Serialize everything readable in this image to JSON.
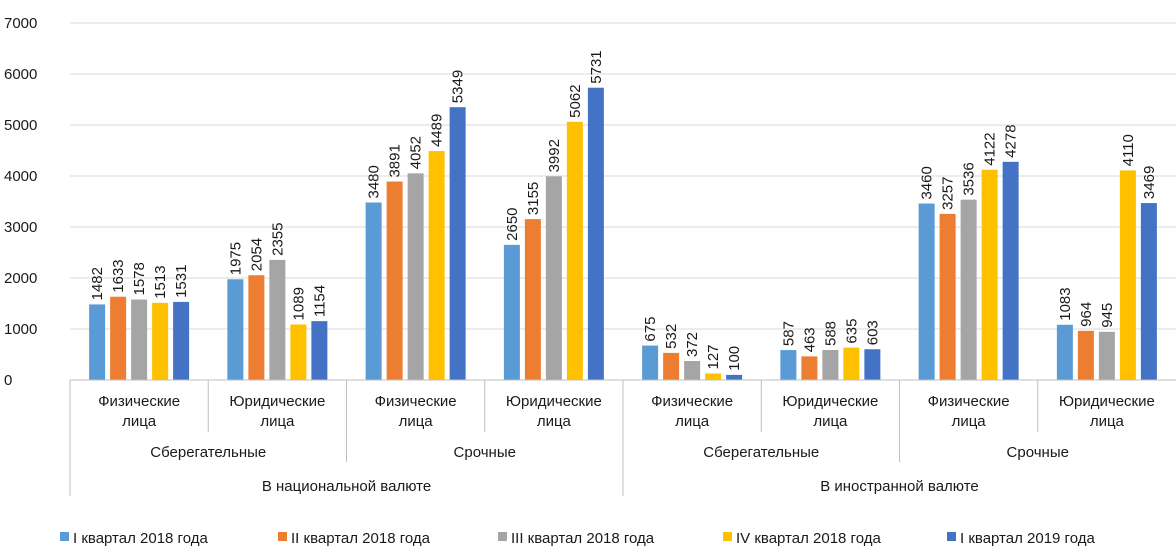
{
  "chart_data": {
    "type": "bar",
    "title": "",
    "xlabel": "",
    "ylabel": "",
    "ylim": [
      0,
      7000
    ],
    "yticks": [
      0,
      1000,
      2000,
      3000,
      4000,
      5000,
      6000,
      7000
    ],
    "grid": true,
    "legend_position": "bottom",
    "categories": [
      "Физические лица",
      "Юридические лица",
      "Физические лица",
      "Юридические лица",
      "Физические лица",
      "Юридические лица",
      "Физические лица",
      "Юридические лица"
    ],
    "category_lines": [
      [
        "Физические",
        "лица"
      ],
      [
        "Юридические",
        "лица"
      ],
      [
        "Физические",
        "лица"
      ],
      [
        "Юридические",
        "лица"
      ],
      [
        "Физические",
        "лица"
      ],
      [
        "Юридические",
        "лица"
      ],
      [
        "Физические",
        "лица"
      ],
      [
        "Юридические",
        "лица"
      ]
    ],
    "level2": [
      "Сберегательные",
      "Срочные",
      "Сберегательные",
      "Срочные"
    ],
    "level3": [
      "В национальной валюте",
      "В иностранной валюте"
    ],
    "series": [
      {
        "name": "I квартал 2018 года",
        "color": "#5b9bd5",
        "values": [
          1482,
          1975,
          3480,
          2650,
          675,
          587,
          3460,
          1083
        ]
      },
      {
        "name": "II квартал 2018 года",
        "color": "#ed7d31",
        "values": [
          1633,
          2054,
          3891,
          3155,
          532,
          463,
          3257,
          964
        ]
      },
      {
        "name": "III квартал 2018 года",
        "color": "#a5a5a5",
        "values": [
          1578,
          2355,
          4052,
          3992,
          372,
          588,
          3536,
          945
        ]
      },
      {
        "name": "IV квартал 2018 года",
        "color": "#ffc000",
        "values": [
          1513,
          1089,
          4489,
          5062,
          127,
          635,
          4122,
          4110
        ]
      },
      {
        "name": "I квартал 2019 года",
        "color": "#4472c4",
        "values": [
          1531,
          1154,
          5349,
          5731,
          100,
          603,
          4278,
          3469
        ]
      }
    ]
  }
}
